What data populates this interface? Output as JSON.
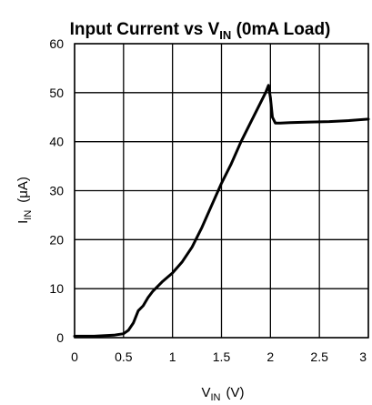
{
  "chart_data": {
    "type": "line",
    "title": {
      "main": "Input Current vs V",
      "sub": "IN",
      "suffix": " (0mA Load)"
    },
    "xlabel": {
      "main": "V",
      "sub": "IN",
      "unit": "(V)"
    },
    "ylabel": {
      "main": "I",
      "sub": "IN",
      "unit": "(μA)"
    },
    "xlim": [
      0,
      3
    ],
    "ylim": [
      0,
      60
    ],
    "xticks": [
      0,
      0.5,
      1,
      1.5,
      2,
      2.5,
      3
    ],
    "xtick_labels": [
      "0",
      "0.5",
      "1",
      "1.5",
      "2",
      "2.5",
      "3"
    ],
    "yticks": [
      0,
      10,
      20,
      30,
      40,
      50,
      60
    ],
    "ytick_labels": [
      "0",
      "10",
      "20",
      "30",
      "40",
      "50",
      "60"
    ],
    "grid": true,
    "series": [
      {
        "x": [
          0,
          0.2,
          0.4,
          0.5,
          0.55,
          0.6,
          0.65,
          0.7,
          0.75,
          0.8,
          0.9,
          1.0,
          1.1,
          1.2,
          1.3,
          1.4,
          1.5,
          1.6,
          1.7,
          1.8,
          1.9,
          1.95,
          1.98,
          2.0,
          2.02,
          2.05,
          2.1,
          2.2,
          2.4,
          2.6,
          2.8,
          3.0
        ],
        "y": [
          0.3,
          0.3,
          0.5,
          0.8,
          1.5,
          3,
          5.5,
          6.5,
          8.2,
          9.5,
          11.5,
          13.2,
          15.5,
          18.5,
          22.5,
          27,
          31.5,
          35.5,
          40,
          44,
          48,
          50,
          51.5,
          49,
          45,
          43.8,
          43.8,
          43.9,
          44,
          44.1,
          44.3,
          44.6
        ]
      }
    ]
  }
}
